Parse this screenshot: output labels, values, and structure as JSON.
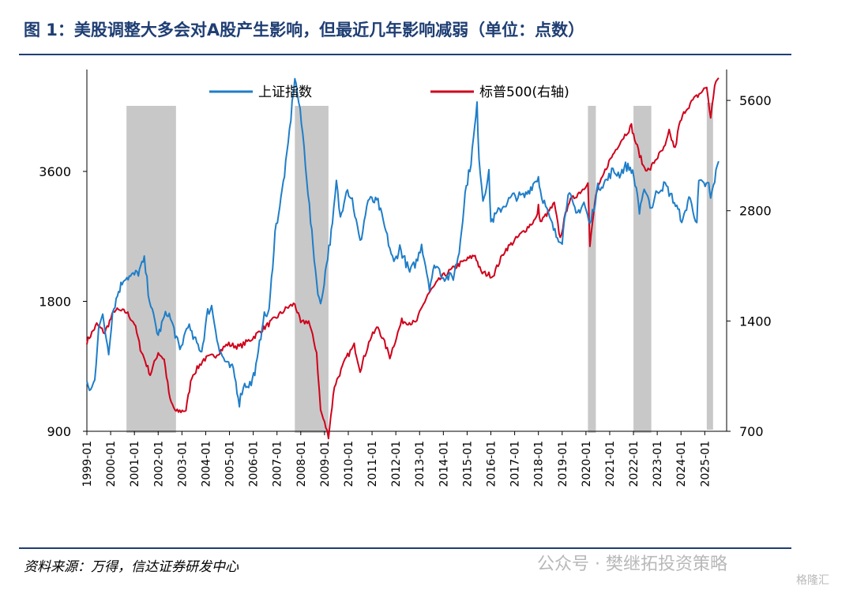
{
  "title": "图 1：美股调整大多会对A股产生影响，但最近几年影响减弱（单位：点数）",
  "source": "资料来源：万得，信达证券研发中心",
  "watermark": "公众号 · 樊继拓投资策略",
  "corner_logo": "格隆汇",
  "colors": {
    "title": "#1f3e73",
    "sse": "#1f7ec8",
    "spx": "#d0021b",
    "shade": "#c8c8c8"
  },
  "chart_data": {
    "type": "line",
    "legend": [
      "上证指数",
      "标普500(右轴)"
    ],
    "legend_position": "top",
    "x_ticks": [
      "1999-01",
      "2000-01",
      "2001-01",
      "2002-01",
      "2003-01",
      "2004-01",
      "2005-01",
      "2006-01",
      "2007-01",
      "2008-01",
      "2009-01",
      "2010-01",
      "2011-01",
      "2012-01",
      "2013-01",
      "2014-01",
      "2015-01",
      "2016-01",
      "2017-01",
      "2018-01",
      "2019-01",
      "2020-01",
      "2021-01",
      "2022-01",
      "2023-01",
      "2024-01",
      "2025-01"
    ],
    "y_left": {
      "scale": "log",
      "ticks": [
        900,
        1800,
        3600
      ],
      "range": [
        900,
        6200
      ]
    },
    "y_right": {
      "scale": "log",
      "ticks": [
        700,
        1400,
        2800,
        5600
      ],
      "range": [
        700,
        6800
      ]
    },
    "shaded_periods": [
      [
        "2000-09",
        "2002-10"
      ],
      [
        "2007-10",
        "2009-03"
      ],
      [
        "2020-02",
        "2020-06"
      ],
      [
        "2022-01",
        "2022-10"
      ],
      [
        "2025-02",
        "2025-05"
      ]
    ],
    "series": [
      {
        "name": "上证指数",
        "axis": "left",
        "points": [
          [
            "1999-01",
            1150
          ],
          [
            "1999-03",
            1120
          ],
          [
            "1999-05",
            1180
          ],
          [
            "1999-07",
            1600
          ],
          [
            "1999-09",
            1650
          ],
          [
            "1999-12",
            1380
          ],
          [
            "2000-02",
            1700
          ],
          [
            "2000-05",
            1900
          ],
          [
            "2000-08",
            2050
          ],
          [
            "2000-11",
            2050
          ],
          [
            "2001-03",
            2100
          ],
          [
            "2001-06",
            2240
          ],
          [
            "2001-08",
            1900
          ],
          [
            "2001-10",
            1700
          ],
          [
            "2002-01",
            1500
          ],
          [
            "2002-04",
            1650
          ],
          [
            "2002-06",
            1700
          ],
          [
            "2002-09",
            1550
          ],
          [
            "2002-12",
            1380
          ],
          [
            "2003-04",
            1600
          ],
          [
            "2003-06",
            1500
          ],
          [
            "2003-11",
            1380
          ],
          [
            "2004-02",
            1700
          ],
          [
            "2004-04",
            1750
          ],
          [
            "2004-08",
            1380
          ],
          [
            "2004-12",
            1280
          ],
          [
            "2005-03",
            1250
          ],
          [
            "2005-06",
            1050
          ],
          [
            "2005-08",
            1150
          ],
          [
            "2005-12",
            1160
          ],
          [
            "2006-03",
            1300
          ],
          [
            "2006-06",
            1650
          ],
          [
            "2006-09",
            1700
          ],
          [
            "2006-12",
            2600
          ],
          [
            "2007-03",
            3100
          ],
          [
            "2007-06",
            3900
          ],
          [
            "2007-08",
            4800
          ],
          [
            "2007-10",
            5950
          ],
          [
            "2007-12",
            5200
          ],
          [
            "2008-02",
            4400
          ],
          [
            "2008-04",
            3500
          ],
          [
            "2008-06",
            2750
          ],
          [
            "2008-09",
            2000
          ],
          [
            "2008-11",
            1750
          ],
          [
            "2009-02",
            2200
          ],
          [
            "2009-05",
            2700
          ],
          [
            "2009-07",
            3400
          ],
          [
            "2009-09",
            2800
          ],
          [
            "2009-12",
            3300
          ],
          [
            "2010-03",
            3100
          ],
          [
            "2010-07",
            2450
          ],
          [
            "2010-11",
            3100
          ],
          [
            "2011-04",
            3050
          ],
          [
            "2011-08",
            2600
          ],
          [
            "2011-12",
            2200
          ],
          [
            "2012-03",
            2400
          ],
          [
            "2012-08",
            2100
          ],
          [
            "2012-12",
            2250
          ],
          [
            "2013-02",
            2450
          ],
          [
            "2013-06",
            1950
          ],
          [
            "2013-09",
            2200
          ],
          [
            "2014-01",
            2050
          ],
          [
            "2014-06",
            2050
          ],
          [
            "2014-09",
            2350
          ],
          [
            "2014-12",
            3200
          ],
          [
            "2015-03",
            3800
          ],
          [
            "2015-06",
            5100
          ],
          [
            "2015-07",
            3900
          ],
          [
            "2015-09",
            3100
          ],
          [
            "2015-12",
            3550
          ],
          [
            "2016-01",
            2750
          ],
          [
            "2016-06",
            2950
          ],
          [
            "2016-12",
            3150
          ],
          [
            "2017-06",
            3150
          ],
          [
            "2017-11",
            3400
          ],
          [
            "2018-01",
            3500
          ],
          [
            "2018-02",
            3250
          ],
          [
            "2018-06",
            2850
          ],
          [
            "2018-10",
            2550
          ],
          [
            "2019-01",
            2500
          ],
          [
            "2019-04",
            3250
          ],
          [
            "2019-08",
            2850
          ],
          [
            "2019-12",
            3050
          ],
          [
            "2020-03",
            2700
          ],
          [
            "2020-07",
            3300
          ],
          [
            "2020-12",
            3450
          ],
          [
            "2021-02",
            3600
          ],
          [
            "2021-06",
            3550
          ],
          [
            "2021-09",
            3700
          ],
          [
            "2021-12",
            3650
          ],
          [
            "2022-03",
            3200
          ],
          [
            "2022-04",
            2880
          ],
          [
            "2022-07",
            3300
          ],
          [
            "2022-10",
            2950
          ],
          [
            "2023-01",
            3250
          ],
          [
            "2023-05",
            3350
          ],
          [
            "2023-09",
            3100
          ],
          [
            "2024-02",
            2750
          ],
          [
            "2024-05",
            3150
          ],
          [
            "2024-09",
            2750
          ],
          [
            "2024-10",
            3400
          ],
          [
            "2024-12",
            3350
          ],
          [
            "2025-03",
            3350
          ],
          [
            "2025-04",
            3100
          ],
          [
            "2025-06",
            3450
          ],
          [
            "2025-08",
            3800
          ]
        ]
      },
      {
        "name": "标普500(右轴)",
        "axis": "right",
        "points": [
          [
            "1999-01",
            1230
          ],
          [
            "1999-06",
            1370
          ],
          [
            "1999-10",
            1300
          ],
          [
            "2000-03",
            1500
          ],
          [
            "2000-09",
            1480
          ],
          [
            "2001-01",
            1380
          ],
          [
            "2001-04",
            1180
          ],
          [
            "2001-09",
            1000
          ],
          [
            "2002-01",
            1150
          ],
          [
            "2002-04",
            1100
          ],
          [
            "2002-07",
            850
          ],
          [
            "2002-10",
            790
          ],
          [
            "2003-03",
            800
          ],
          [
            "2003-06",
            990
          ],
          [
            "2003-12",
            1100
          ],
          [
            "2004-06",
            1130
          ],
          [
            "2004-12",
            1210
          ],
          [
            "2005-06",
            1190
          ],
          [
            "2005-12",
            1250
          ],
          [
            "2006-05",
            1320
          ],
          [
            "2006-12",
            1420
          ],
          [
            "2007-06",
            1520
          ],
          [
            "2007-10",
            1560
          ],
          [
            "2008-01",
            1380
          ],
          [
            "2008-05",
            1400
          ],
          [
            "2008-09",
            1150
          ],
          [
            "2008-11",
            800
          ],
          [
            "2009-03",
            680
          ],
          [
            "2009-06",
            930
          ],
          [
            "2009-12",
            1110
          ],
          [
            "2010-04",
            1200
          ],
          [
            "2010-07",
            1030
          ],
          [
            "2010-12",
            1250
          ],
          [
            "2011-04",
            1350
          ],
          [
            "2011-10",
            1120
          ],
          [
            "2012-04",
            1400
          ],
          [
            "2012-11",
            1380
          ],
          [
            "2013-05",
            1650
          ],
          [
            "2013-12",
            1840
          ],
          [
            "2014-09",
            2000
          ],
          [
            "2015-05",
            2120
          ],
          [
            "2015-08",
            1900
          ],
          [
            "2016-02",
            1860
          ],
          [
            "2016-08",
            2180
          ],
          [
            "2017-03",
            2380
          ],
          [
            "2017-12",
            2670
          ],
          [
            "2018-01",
            2870
          ],
          [
            "2018-02",
            2600
          ],
          [
            "2018-09",
            2920
          ],
          [
            "2018-12",
            2350
          ],
          [
            "2019-04",
            2940
          ],
          [
            "2019-12",
            3230
          ],
          [
            "2020-02",
            3380
          ],
          [
            "2020-03",
            2240
          ],
          [
            "2020-06",
            3100
          ],
          [
            "2020-12",
            3750
          ],
          [
            "2021-06",
            4300
          ],
          [
            "2021-12",
            4770
          ],
          [
            "2022-01",
            4500
          ],
          [
            "2022-06",
            3700
          ],
          [
            "2022-09",
            3600
          ],
          [
            "2022-12",
            3850
          ],
          [
            "2023-05",
            4180
          ],
          [
            "2023-07",
            4590
          ],
          [
            "2023-10",
            4120
          ],
          [
            "2023-12",
            4770
          ],
          [
            "2024-03",
            5250
          ],
          [
            "2024-07",
            5600
          ],
          [
            "2024-12",
            5950
          ],
          [
            "2025-02",
            6100
          ],
          [
            "2025-04",
            4980
          ],
          [
            "2025-06",
            6200
          ],
          [
            "2025-08",
            6450
          ]
        ]
      }
    ]
  }
}
